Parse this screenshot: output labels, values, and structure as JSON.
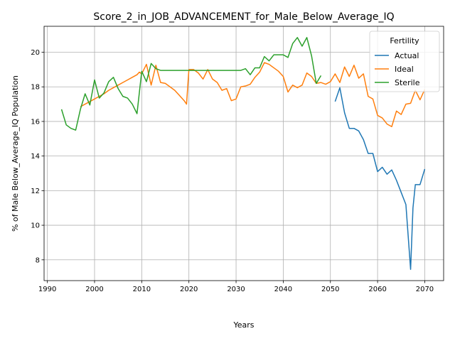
{
  "chart_data": {
    "type": "line",
    "title": "Score_2_in_JOB_ADVANCEMENT_for_Male_Below_Average_IQ",
    "xlabel": "Years",
    "ylabel": "% of Male Below_Average_IQ Population",
    "xlim": [
      1989.3,
      2074.0
    ],
    "ylim": [
      6.8,
      21.5
    ],
    "xticks": [
      1990,
      2000,
      2010,
      2020,
      2030,
      2040,
      2050,
      2060,
      2070
    ],
    "yticks": [
      8,
      10,
      12,
      14,
      16,
      18,
      20
    ],
    "grid": true,
    "legend": {
      "title": "Fertility",
      "placement": "top-right"
    },
    "series": [
      {
        "name": "Actual",
        "color": "#1f77b4",
        "points": [
          [
            2051,
            17.15
          ],
          [
            2052,
            17.95
          ],
          [
            2053,
            16.5
          ],
          [
            2054,
            15.6
          ],
          [
            2055,
            15.6
          ],
          [
            2056,
            15.45
          ],
          [
            2057,
            14.95
          ],
          [
            2058,
            14.15
          ],
          [
            2059,
            14.15
          ],
          [
            2060,
            13.1
          ],
          [
            2061,
            13.35
          ],
          [
            2062,
            12.95
          ],
          [
            2063,
            13.2
          ],
          [
            2064,
            12.6
          ],
          [
            2065,
            11.9
          ],
          [
            2066,
            11.2
          ],
          [
            2067,
            7.45
          ],
          [
            2067.5,
            11.0
          ],
          [
            2068,
            12.35
          ],
          [
            2069,
            12.35
          ],
          [
            2070,
            13.25
          ]
        ]
      },
      {
        "name": "Ideal",
        "color": "#ff7f0e",
        "points": [
          [
            1997,
            16.85
          ],
          [
            1998,
            17.0
          ],
          [
            1999,
            17.15
          ],
          [
            2000,
            17.3
          ],
          [
            2001,
            17.45
          ],
          [
            2002,
            17.6
          ],
          [
            2003,
            17.8
          ],
          [
            2004,
            17.95
          ],
          [
            2005,
            18.1
          ],
          [
            2006,
            18.25
          ],
          [
            2007,
            18.4
          ],
          [
            2008,
            18.55
          ],
          [
            2009,
            18.7
          ],
          [
            2009.5,
            18.85
          ],
          [
            2010,
            18.75
          ],
          [
            2011,
            19.3
          ],
          [
            2012,
            18.1
          ],
          [
            2013,
            19.25
          ],
          [
            2014,
            18.25
          ],
          [
            2015,
            18.2
          ],
          [
            2016,
            18.0
          ],
          [
            2017,
            17.8
          ],
          [
            2018,
            17.5
          ],
          [
            2019,
            17.2
          ],
          [
            2019.5,
            17.0
          ],
          [
            2020,
            19.0
          ],
          [
            2021,
            19.0
          ],
          [
            2022,
            18.8
          ],
          [
            2023,
            18.45
          ],
          [
            2024,
            19.0
          ],
          [
            2025,
            18.45
          ],
          [
            2026,
            18.25
          ],
          [
            2027,
            17.8
          ],
          [
            2028,
            17.9
          ],
          [
            2029,
            17.2
          ],
          [
            2030,
            17.3
          ],
          [
            2031,
            18.0
          ],
          [
            2032,
            18.05
          ],
          [
            2033,
            18.15
          ],
          [
            2034,
            18.55
          ],
          [
            2035,
            18.85
          ],
          [
            2036,
            19.4
          ],
          [
            2037,
            19.3
          ],
          [
            2038,
            19.1
          ],
          [
            2039,
            18.9
          ],
          [
            2040,
            18.6
          ],
          [
            2041,
            17.7
          ],
          [
            2042,
            18.1
          ],
          [
            2043,
            17.95
          ],
          [
            2044,
            18.1
          ],
          [
            2045,
            18.8
          ],
          [
            2046,
            18.6
          ],
          [
            2047,
            18.2
          ],
          [
            2048,
            18.25
          ],
          [
            2049,
            18.15
          ],
          [
            2050,
            18.3
          ],
          [
            2051,
            18.75
          ],
          [
            2052,
            18.25
          ],
          [
            2053,
            19.15
          ],
          [
            2054,
            18.6
          ],
          [
            2055,
            19.25
          ],
          [
            2056,
            18.5
          ],
          [
            2057,
            18.75
          ],
          [
            2058,
            17.45
          ],
          [
            2059,
            17.3
          ],
          [
            2060,
            16.35
          ],
          [
            2061,
            16.2
          ],
          [
            2062,
            15.85
          ],
          [
            2063,
            15.7
          ],
          [
            2064,
            16.6
          ],
          [
            2065,
            16.4
          ],
          [
            2066,
            17.0
          ],
          [
            2067,
            17.05
          ],
          [
            2068,
            17.8
          ],
          [
            2069,
            17.25
          ],
          [
            2070,
            17.85
          ]
        ]
      },
      {
        "name": "Sterile",
        "color": "#2ca02c",
        "points": [
          [
            1993,
            16.7
          ],
          [
            1994,
            15.8
          ],
          [
            1995,
            15.6
          ],
          [
            1996,
            15.5
          ],
          [
            1997,
            16.7
          ],
          [
            1998,
            17.6
          ],
          [
            1999,
            16.95
          ],
          [
            2000,
            18.4
          ],
          [
            2001,
            17.35
          ],
          [
            2002,
            17.65
          ],
          [
            2003,
            18.3
          ],
          [
            2004,
            18.55
          ],
          [
            2005,
            17.9
          ],
          [
            2006,
            17.45
          ],
          [
            2007,
            17.35
          ],
          [
            2008,
            17.0
          ],
          [
            2009,
            16.45
          ],
          [
            2010,
            18.9
          ],
          [
            2011,
            18.3
          ],
          [
            2012,
            19.35
          ],
          [
            2013,
            19.05
          ],
          [
            2014,
            18.95
          ],
          [
            2015,
            18.95
          ],
          [
            2020,
            18.95
          ],
          [
            2025,
            18.95
          ],
          [
            2030,
            18.95
          ],
          [
            2031,
            18.95
          ],
          [
            2032,
            19.05
          ],
          [
            2033,
            18.7
          ],
          [
            2034,
            19.1
          ],
          [
            2035,
            19.1
          ],
          [
            2036,
            19.75
          ],
          [
            2037,
            19.5
          ],
          [
            2038,
            19.85
          ],
          [
            2039,
            19.85
          ],
          [
            2040,
            19.85
          ],
          [
            2041,
            19.7
          ],
          [
            2042,
            20.5
          ],
          [
            2043,
            20.85
          ],
          [
            2044,
            20.35
          ],
          [
            2045,
            20.85
          ],
          [
            2046,
            19.8
          ],
          [
            2047,
            18.2
          ],
          [
            2048,
            18.65
          ]
        ]
      }
    ]
  }
}
